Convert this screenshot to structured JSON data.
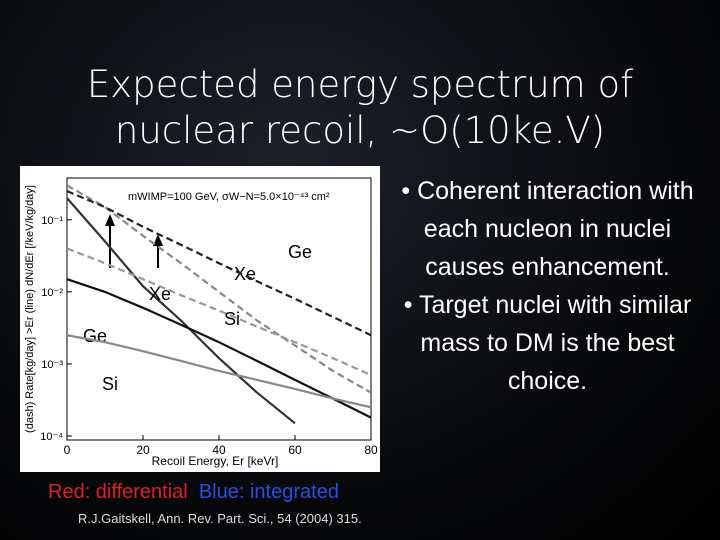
{
  "title": [
    "Expected energy spectrum of",
    "nuclear recoil, ~O(10ke.V)"
  ],
  "bullets": [
    "Coherent interaction with each nucleon in nuclei causes enhancement.",
    "Target nuclei with similar mass to DM is the best choice."
  ],
  "caption": {
    "differential": "Red: differential",
    "integrated": "Blue: integrated"
  },
  "citation": "R.J.Gaitskell, Ann. Rev. Part. Sci., 54 (2004) 315.",
  "chart_data": {
    "type": "line",
    "annotation": "mWIMP=100 GeV, σW−N=5.0×10⁻⁴³ cm²",
    "xlabel": "Recoil Energy, Er [keVr]",
    "ylabel": "(dash) Rate[kg/day] >Er (line) dN/dEr [/keV/kg/day]",
    "y_log": true,
    "grid": false,
    "x": [
      0,
      10,
      20,
      30,
      40,
      50,
      60,
      70,
      80
    ],
    "xlim": [
      0,
      80
    ],
    "xticks": [
      0,
      20,
      40,
      60,
      80
    ],
    "ylim": [
      8.8e-05,
      0.38
    ],
    "yticks": [
      {
        "value": 0.1,
        "label": "10⁻¹"
      },
      {
        "value": 0.01,
        "label": "10⁻²"
      },
      {
        "value": 0.001,
        "label": "10⁻³"
      },
      {
        "value": 0.0001,
        "label": "10⁻⁴"
      }
    ],
    "series": [
      {
        "name": "Xe",
        "color": "#333333",
        "dash": false,
        "values": [
          0.2,
          0.05,
          0.012,
          0.004,
          0.0012,
          0.0004,
          0.00015,
          null,
          null
        ]
      },
      {
        "name": "Ge",
        "color": "#111111",
        "dash": false,
        "values": [
          0.015,
          0.01,
          0.006,
          0.0035,
          0.002,
          0.0011,
          0.0006,
          0.00033,
          0.00018
        ]
      },
      {
        "name": "Si",
        "color": "#888888",
        "dash": false,
        "values": [
          0.0025,
          0.002,
          0.0015,
          0.0011,
          0.0008,
          0.0006,
          0.00045,
          0.00033,
          0.00025
        ]
      },
      {
        "name": "Xe",
        "color": "#888888",
        "dash": true,
        "values": [
          0.3,
          0.15,
          0.06,
          0.025,
          0.01,
          0.004,
          0.0018,
          0.0008,
          0.0004
        ]
      },
      {
        "name": "Ge",
        "color": "#222222",
        "dash": true,
        "values": [
          0.25,
          0.15,
          0.08,
          0.045,
          0.025,
          0.014,
          0.008,
          0.0045,
          0.0025
        ]
      },
      {
        "name": "Si",
        "color": "#999999",
        "dash": true,
        "values": [
          0.04,
          0.025,
          0.015,
          0.009,
          0.0055,
          0.0033,
          0.002,
          0.0012,
          0.0007
        ]
      }
    ]
  }
}
